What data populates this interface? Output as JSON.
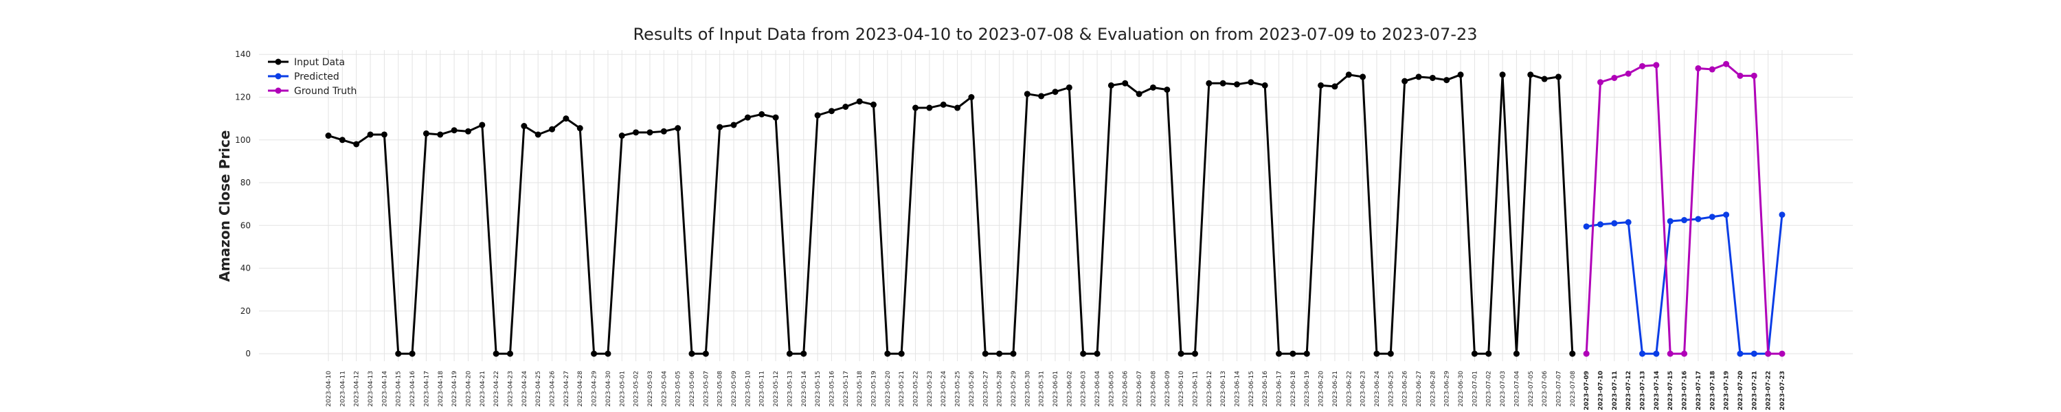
{
  "chart_data": {
    "type": "line",
    "title": "Results of Input Data from 2023-04-10 to 2023-07-08 & Evaluation on from 2023-07-09 to 2023-07-23",
    "y_label": "Amazon Close Price",
    "categories": [
      "2023-04-10",
      "2023-04-11",
      "2023-04-12",
      "2023-04-13",
      "2023-04-14",
      "2023-04-15",
      "2023-04-16",
      "2023-04-17",
      "2023-04-18",
      "2023-04-19",
      "2023-04-20",
      "2023-04-21",
      "2023-04-22",
      "2023-04-23",
      "2023-04-24",
      "2023-04-25",
      "2023-04-26",
      "2023-04-27",
      "2023-04-28",
      "2023-04-29",
      "2023-04-30",
      "2023-05-01",
      "2023-05-02",
      "2023-05-03",
      "2023-05-04",
      "2023-05-05",
      "2023-05-06",
      "2023-05-07",
      "2023-05-08",
      "2023-05-09",
      "2023-05-10",
      "2023-05-11",
      "2023-05-12",
      "2023-05-13",
      "2023-05-14",
      "2023-05-15",
      "2023-05-16",
      "2023-05-17",
      "2023-05-18",
      "2023-05-19",
      "2023-05-20",
      "2023-05-21",
      "2023-05-22",
      "2023-05-23",
      "2023-05-24",
      "2023-05-25",
      "2023-05-26",
      "2023-05-27",
      "2023-05-28",
      "2023-05-29",
      "2023-05-30",
      "2023-05-31",
      "2023-06-01",
      "2023-06-02",
      "2023-06-03",
      "2023-06-04",
      "2023-06-05",
      "2023-06-06",
      "2023-06-07",
      "2023-06-08",
      "2023-06-09",
      "2023-06-10",
      "2023-06-11",
      "2023-06-12",
      "2023-06-13",
      "2023-06-14",
      "2023-06-15",
      "2023-06-16",
      "2023-06-17",
      "2023-06-18",
      "2023-06-19",
      "2023-06-20",
      "2023-06-21",
      "2023-06-22",
      "2023-06-23",
      "2023-06-24",
      "2023-06-25",
      "2023-06-26",
      "2023-06-27",
      "2023-06-28",
      "2023-06-29",
      "2023-06-30",
      "2023-07-01",
      "2023-07-02",
      "2023-07-03",
      "2023-07-04",
      "2023-07-05",
      "2023-07-06",
      "2023-07-07",
      "2023-07-08",
      "2023-07-09",
      "2023-07-10",
      "2023-07-11",
      "2023-07-12",
      "2023-07-13",
      "2023-07-14",
      "2023-07-15",
      "2023-07-16",
      "2023-07-17",
      "2023-07-18",
      "2023-07-19",
      "2023-07-20",
      "2023-07-21",
      "2023-07-22",
      "2023-07-23"
    ],
    "series": [
      {
        "name": "Input Data",
        "color": "#000000",
        "values": [
          102,
          100,
          98,
          102.5,
          102.5,
          0,
          0,
          103,
          102.5,
          104.5,
          104,
          107,
          0,
          0,
          106.5,
          102.5,
          105,
          110,
          105.5,
          0,
          0,
          102,
          103.5,
          103.5,
          104,
          105.5,
          0,
          0,
          106,
          107,
          110.5,
          112,
          110.5,
          0,
          0,
          111.5,
          113.5,
          115.5,
          118,
          116.5,
          0,
          0,
          115,
          115,
          116.5,
          115,
          120,
          0,
          0,
          0,
          121.5,
          120.5,
          122.5,
          124.5,
          0,
          0,
          125.5,
          126.5,
          121.5,
          124.5,
          123.5,
          0,
          0,
          126.5,
          126.5,
          126,
          127,
          125.5,
          0,
          0,
          0,
          125.5,
          125,
          130.5,
          129.5,
          0,
          0,
          127.5,
          129.5,
          129,
          128,
          130.5,
          0,
          0,
          130.5,
          0,
          130.5,
          128.5,
          129.5,
          0,
          null,
          null,
          null,
          null,
          null,
          null,
          null,
          null,
          null,
          null,
          null,
          null,
          null,
          null,
          null
        ]
      },
      {
        "name": "Predicted",
        "color": "#0a3de6",
        "values": [
          null,
          null,
          null,
          null,
          null,
          null,
          null,
          null,
          null,
          null,
          null,
          null,
          null,
          null,
          null,
          null,
          null,
          null,
          null,
          null,
          null,
          null,
          null,
          null,
          null,
          null,
          null,
          null,
          null,
          null,
          null,
          null,
          null,
          null,
          null,
          null,
          null,
          null,
          null,
          null,
          null,
          null,
          null,
          null,
          null,
          null,
          null,
          null,
          null,
          null,
          null,
          null,
          null,
          null,
          null,
          null,
          null,
          null,
          null,
          null,
          null,
          null,
          null,
          null,
          null,
          null,
          null,
          null,
          null,
          null,
          null,
          null,
          null,
          null,
          null,
          null,
          null,
          null,
          null,
          null,
          null,
          null,
          null,
          null,
          null,
          null,
          null,
          null,
          null,
          null,
          59.5,
          60.5,
          61,
          61.5,
          0,
          0,
          62,
          62.5,
          63,
          64,
          65,
          0,
          0,
          0,
          65
        ]
      },
      {
        "name": "Ground Truth",
        "color": "#b000b8",
        "values": [
          null,
          null,
          null,
          null,
          null,
          null,
          null,
          null,
          null,
          null,
          null,
          null,
          null,
          null,
          null,
          null,
          null,
          null,
          null,
          null,
          null,
          null,
          null,
          null,
          null,
          null,
          null,
          null,
          null,
          null,
          null,
          null,
          null,
          null,
          null,
          null,
          null,
          null,
          null,
          null,
          null,
          null,
          null,
          null,
          null,
          null,
          null,
          null,
          null,
          null,
          null,
          null,
          null,
          null,
          null,
          null,
          null,
          null,
          null,
          null,
          null,
          null,
          null,
          null,
          null,
          null,
          null,
          null,
          null,
          null,
          null,
          null,
          null,
          null,
          null,
          null,
          null,
          null,
          null,
          null,
          null,
          null,
          null,
          null,
          null,
          null,
          null,
          null,
          null,
          null,
          0,
          127,
          129,
          131,
          134.5,
          135,
          0,
          0,
          133.5,
          133,
          135.5,
          130,
          130,
          0,
          0
        ]
      }
    ],
    "ylim": [
      -3.5,
      142
    ],
    "yticks": [
      0,
      20,
      40,
      60,
      80,
      100,
      120,
      140
    ],
    "grid": true,
    "legend": "upper left"
  }
}
